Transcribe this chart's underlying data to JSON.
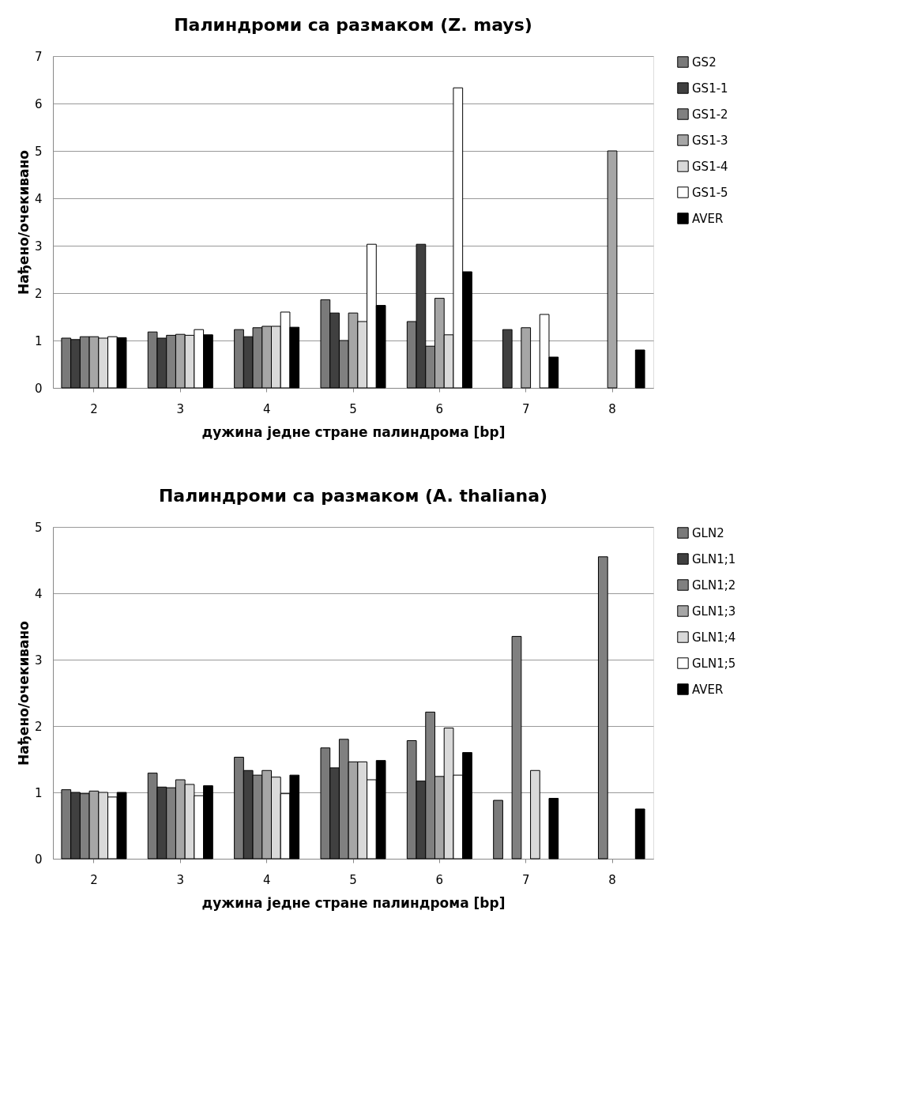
{
  "chart_data": [
    {
      "type": "bar",
      "title": "Палиндроми са размаком (Z. mays)",
      "xlabel": "дужина једне стране палиндрома [bp]",
      "ylabel": "Нађено/очекивано",
      "categories": [
        "2",
        "3",
        "4",
        "5",
        "6",
        "7",
        "8"
      ],
      "series": [
        {
          "name": "GS2",
          "color": "#7a7a7a",
          "values": [
            1.05,
            1.18,
            1.23,
            1.86,
            1.4,
            null,
            null
          ]
        },
        {
          "name": "GS1-1",
          "color": "#404040",
          "values": [
            1.02,
            1.05,
            1.08,
            1.58,
            3.03,
            1.23,
            null
          ]
        },
        {
          "name": "GS1-2",
          "color": "#808080",
          "values": [
            1.08,
            1.11,
            1.27,
            1.0,
            0.88,
            null,
            null
          ]
        },
        {
          "name": "GS1-3",
          "color": "#a6a6a6",
          "values": [
            1.08,
            1.13,
            1.3,
            1.58,
            1.89,
            1.27,
            5.0
          ]
        },
        {
          "name": "GS1-4",
          "color": "#d9d9d9",
          "values": [
            1.05,
            1.11,
            1.3,
            1.4,
            1.12,
            null,
            null
          ]
        },
        {
          "name": "GS1-5",
          "color": "#ffffff",
          "values": [
            1.08,
            1.23,
            1.6,
            3.03,
            6.33,
            1.55,
            null
          ]
        },
        {
          "name": "AVER",
          "color": "#000000",
          "values": [
            1.06,
            1.12,
            1.28,
            1.74,
            2.45,
            0.65,
            0.8
          ]
        }
      ],
      "ylim": [
        0,
        7
      ],
      "yticks": [
        0,
        1,
        2,
        3,
        4,
        5,
        6,
        7
      ],
      "grid": "y",
      "legend": "right"
    },
    {
      "type": "bar",
      "title": "Палиндроми са размаком (A. thaliana)",
      "xlabel": "дужина једне стране палиндрома  [bp]",
      "ylabel": "Нађено/очекивано",
      "categories": [
        "2",
        "3",
        "4",
        "5",
        "6",
        "7",
        "8"
      ],
      "series": [
        {
          "name": "GLN2",
          "color": "#7a7a7a",
          "values": [
            1.04,
            1.29,
            1.53,
            1.67,
            1.78,
            0.88,
            null
          ]
        },
        {
          "name": "GLN1;1",
          "color": "#404040",
          "values": [
            1.0,
            1.08,
            1.33,
            1.37,
            1.17,
            null,
            null
          ]
        },
        {
          "name": "GLN1;2",
          "color": "#808080",
          "values": [
            0.98,
            1.07,
            1.26,
            1.8,
            2.21,
            3.35,
            4.55
          ]
        },
        {
          "name": "GLN1;3",
          "color": "#a6a6a6",
          "values": [
            1.02,
            1.19,
            1.33,
            1.46,
            1.24,
            null,
            null
          ]
        },
        {
          "name": "GLN1;4",
          "color": "#d9d9d9",
          "values": [
            1.0,
            1.12,
            1.23,
            1.46,
            1.97,
            1.33,
            null
          ]
        },
        {
          "name": "GLN1;5",
          "color": "#ffffff",
          "values": [
            0.93,
            0.95,
            0.98,
            1.19,
            1.26,
            null,
            null
          ]
        },
        {
          "name": "AVER",
          "color": "#000000",
          "values": [
            1.0,
            1.1,
            1.26,
            1.48,
            1.6,
            0.91,
            0.75
          ]
        }
      ],
      "ylim": [
        0,
        5
      ],
      "yticks": [
        0,
        1,
        2,
        3,
        4,
        5
      ],
      "grid": "y",
      "legend": "right"
    }
  ]
}
